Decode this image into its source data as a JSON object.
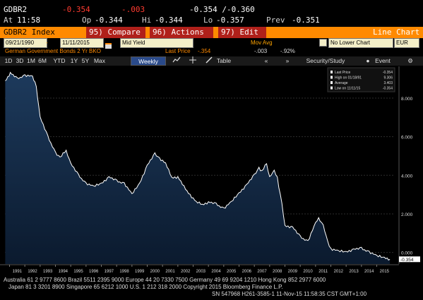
{
  "quote": {
    "ticker": "GDBR2",
    "last": "-0.354",
    "change": "-.003",
    "bid_ask": "-0.354 /-0.360",
    "at_label": "At",
    "at_time": "11:58",
    "op_label": "Op",
    "op": "-0.344",
    "hi_label": "Hi",
    "hi": "-0.344",
    "lo_label": "Lo",
    "lo": "-0.357",
    "prev_label": "Prev",
    "prev": "-0.351"
  },
  "menu": {
    "security": "GDBR2 Index",
    "compare": "95) Compare",
    "actions": "96) Actions",
    "edit": "97) Edit",
    "view": "Line Chart"
  },
  "fields": {
    "start_date": "09/21/1990",
    "end_date": "11/11/2015",
    "field": "Mid Yield",
    "mov_avg_label": "Mov Avg",
    "mov_avg_value": "No Lower Chart",
    "currency": "EUR"
  },
  "info": {
    "description": "German Government Bonds 2 Yr BKO",
    "last_price_label": "Last Price",
    "last_price": "-.354",
    "change": "-.003",
    "pct": "-.92%"
  },
  "toolbar": {
    "intervals": [
      "1D",
      "3D",
      "1M",
      "6M",
      "YTD",
      "1Y",
      "5Y",
      "Max"
    ],
    "frequency": "Weekly",
    "table": "Table",
    "security_study": "Security/Study",
    "event": "Event"
  },
  "legend": {
    "rows": [
      {
        "label": "Last Price",
        "value": "-0.354"
      },
      {
        "label": "High on 01/18/91",
        "value": "9.306"
      },
      {
        "label": "Average",
        "value": "3.403"
      },
      {
        "label": "Low on 11/11/15",
        "value": "-0.354"
      }
    ],
    "flag": "-0.354"
  },
  "footer": {
    "line1": "Australia 61 2 9777 8600 Brazil 5511 2395 9000 Europe 44 20 7330 7500 Germany 49 69 9204 1210 Hong Kong 852 2977 6000",
    "line2": "Japan 81 3 3201 8900          Singapore 65 6212 1000          U.S. 1 212 318 2000          Copyright 2015 Bloomberg Finance L.P.",
    "line3": "SN 547968 H261-3585-1 11-Nov-15 11:58:35 CST  GMT+1:00"
  },
  "colors": {
    "accent_orange": "#ff8a00",
    "button_red": "#b0201a",
    "negative": "#ff3b30",
    "area_top": "#1d3a5c",
    "line": "#ffffff"
  },
  "chart_data": {
    "type": "area",
    "title": "",
    "xlabel": "",
    "ylabel": "",
    "x_ticks": [
      "1991",
      "1992",
      "1993",
      "1994",
      "1995",
      "1996",
      "1997",
      "1998",
      "1999",
      "2000",
      "2001",
      "2002",
      "2003",
      "2004",
      "2005",
      "2006",
      "2007",
      "2008",
      "2009",
      "2010",
      "2011",
      "2012",
      "2013",
      "2014",
      "2015"
    ],
    "y_ticks": [
      "8.000",
      "6.000",
      "4.000",
      "2.000",
      "0.000"
    ],
    "ylim": [
      -0.6,
      9.5
    ],
    "xlim": [
      1990.7,
      2015.9
    ],
    "series": [
      {
        "x": [
          1990.72,
          1991.05,
          1991.5,
          1992.0,
          1992.5,
          1992.75,
          1993.0,
          1993.5,
          1994.0,
          1994.3,
          1994.7,
          1995.0,
          1995.5,
          1996.0,
          1996.5,
          1997.0,
          1997.5,
          1998.0,
          1998.5,
          1999.0,
          1999.5,
          2000.0,
          2000.5,
          2000.8,
          2001.2,
          2001.6,
          2002.0,
          2002.4,
          2002.8,
          2003.2,
          2003.6,
          2004.0,
          2004.5,
          2005.0,
          2005.5,
          2006.0,
          2006.5,
          2007.0,
          2007.3,
          2007.5,
          2007.8,
          2008.0,
          2008.3,
          2008.5,
          2008.8,
          2009.0,
          2009.5,
          2010.0,
          2010.5,
          2011.0,
          2011.2,
          2011.5,
          2011.8,
          2012.0,
          2012.5,
          2013.0,
          2013.5,
          2014.0,
          2014.5,
          2015.0,
          2015.5,
          2015.86
        ],
        "y": [
          8.9,
          9.3,
          9.0,
          9.2,
          9.1,
          8.6,
          7.0,
          6.0,
          5.2,
          4.9,
          5.3,
          4.6,
          4.0,
          3.6,
          3.4,
          3.6,
          3.9,
          3.7,
          3.6,
          3.0,
          3.6,
          4.5,
          5.1,
          4.9,
          4.6,
          3.9,
          3.9,
          3.4,
          3.0,
          2.6,
          2.5,
          2.6,
          2.5,
          2.3,
          2.6,
          3.1,
          3.5,
          4.0,
          4.4,
          4.2,
          4.6,
          3.9,
          4.2,
          3.9,
          2.5,
          1.4,
          1.3,
          0.8,
          0.6,
          1.5,
          1.8,
          1.4,
          0.5,
          0.2,
          0.05,
          0.05,
          0.15,
          0.2,
          0.05,
          -0.2,
          -0.25,
          -0.354
        ]
      }
    ]
  }
}
